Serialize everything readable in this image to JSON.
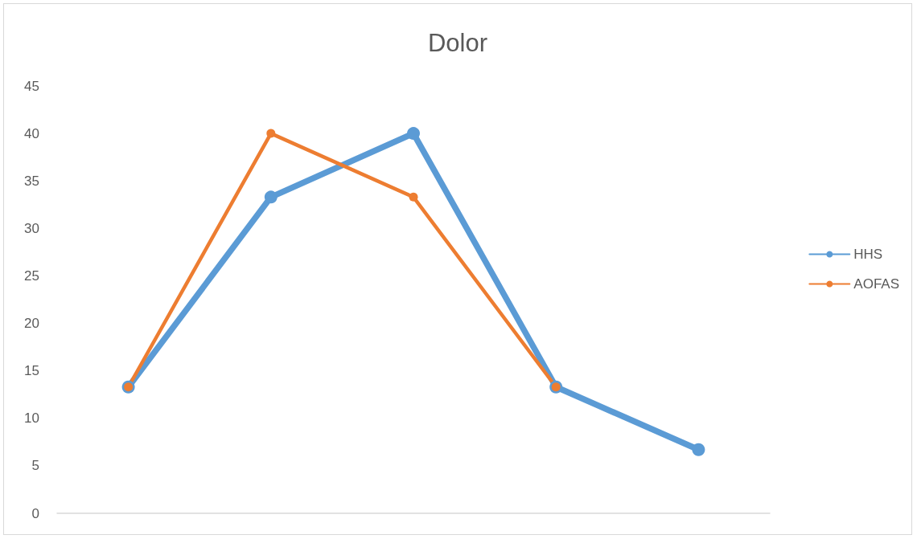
{
  "chart_data": {
    "type": "line",
    "title": "Dolor",
    "categories": [
      null,
      null,
      null,
      null,
      null
    ],
    "series": [
      {
        "name": "HHS",
        "color": "#5b9bd5",
        "values": [
          13.3,
          33.3,
          40,
          13.3,
          6.7
        ]
      },
      {
        "name": "AOFAS",
        "color": "#ed7d31",
        "values": [
          13.3,
          40,
          33.3,
          13.3,
          null
        ]
      }
    ],
    "ylim": [
      0,
      45
    ],
    "yticks": [
      0,
      5,
      10,
      15,
      20,
      25,
      30,
      35,
      40,
      45
    ],
    "grid": false,
    "legend": "right",
    "marker": "circle",
    "line_style": "solid"
  }
}
